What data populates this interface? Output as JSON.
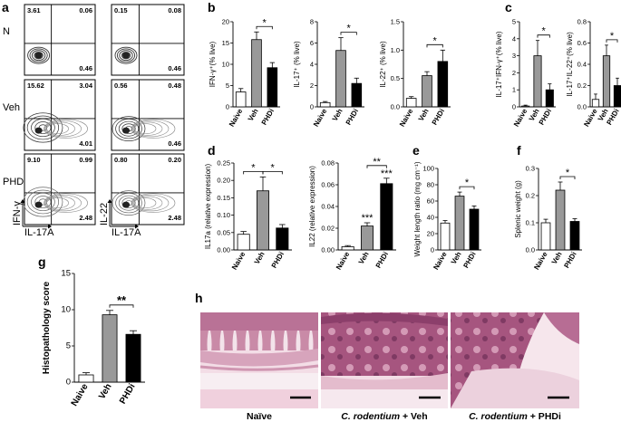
{
  "panel_labels": [
    "a",
    "b",
    "c",
    "d",
    "e",
    "f",
    "g",
    "h"
  ],
  "flow": {
    "rows": [
      "N",
      "Veh",
      "PHDi"
    ],
    "x_axis_label": "IL-17A",
    "y_axis_labels": [
      "IFN-γ",
      "IL-22"
    ],
    "quadrants": [
      [
        [
          "3.61",
          "0.06",
          "0.46"
        ],
        [
          "0.15",
          "0.08",
          "0.46"
        ]
      ],
      [
        [
          "15.62",
          "3.04",
          "4.01"
        ],
        [
          "0.56",
          "0.48",
          "0.46"
        ]
      ],
      [
        [
          "9.10",
          "0.99",
          "2.48"
        ],
        [
          "0.80",
          "0.20",
          "2.48"
        ]
      ]
    ]
  },
  "histology": {
    "captions": [
      {
        "italic": "",
        "plain": "Naïve"
      },
      {
        "italic": "C. rodentium",
        "plain": " + Veh"
      },
      {
        "italic": "C. rodentium",
        "plain": " + PHDi"
      }
    ]
  },
  "chart_data": [
    {
      "id": "b1",
      "type": "bar",
      "categories": [
        "Naive",
        "Veh",
        "PHDi"
      ],
      "values": [
        3.5,
        15.8,
        9.2
      ],
      "errors": [
        0.8,
        1.8,
        1.2
      ],
      "ylabel": "IFN-γ⁺(% live)",
      "ylim": [
        0,
        20
      ],
      "yticks": [
        0,
        5,
        10,
        15,
        20
      ],
      "sig": [
        {
          "from": 1,
          "to": 2,
          "label": "*"
        }
      ]
    },
    {
      "id": "b2",
      "type": "bar",
      "categories": [
        "Naive",
        "Veh",
        "PHDi"
      ],
      "values": [
        0.4,
        5.3,
        2.2
      ],
      "errors": [
        0.1,
        1.2,
        0.5
      ],
      "ylabel": "IL-17⁺ (% live)",
      "ylim": [
        0,
        8
      ],
      "yticks": [
        0,
        2,
        4,
        6,
        8
      ],
      "sig": [
        {
          "from": 1,
          "to": 2,
          "label": "*"
        }
      ]
    },
    {
      "id": "b3",
      "type": "bar",
      "categories": [
        "Naive",
        "Veh",
        "PHDi"
      ],
      "values": [
        0.15,
        0.55,
        0.8
      ],
      "errors": [
        0.03,
        0.07,
        0.2
      ],
      "ylabel": "IL-22⁺ (% live)",
      "ylim": [
        0,
        1.5
      ],
      "yticks": [
        0,
        0.5,
        1.0,
        1.5
      ],
      "sig": [
        {
          "from": 1,
          "to": 2,
          "label": "*"
        }
      ]
    },
    {
      "id": "c1",
      "type": "bar",
      "categories": [
        "Naive",
        "Veh",
        "PHDi"
      ],
      "values": [
        0.05,
        3.0,
        1.0
      ],
      "errors": [
        0.05,
        0.9,
        0.35
      ],
      "ylabel": "IL-17⁺IFN-γ⁺(% live)",
      "ylim": [
        0,
        5
      ],
      "yticks": [
        0,
        1,
        2,
        3,
        4,
        5
      ],
      "sig": [
        {
          "from": 1,
          "to": 2,
          "label": "*"
        }
      ]
    },
    {
      "id": "c2",
      "type": "bar",
      "categories": [
        "Naive",
        "Veh",
        "PHDi"
      ],
      "values": [
        0.07,
        0.48,
        0.2
      ],
      "errors": [
        0.05,
        0.1,
        0.07
      ],
      "ylabel": "IL-17⁺IL-22⁺(% live)",
      "ylim": [
        0,
        0.8
      ],
      "yticks": [
        0,
        0.2,
        0.4,
        0.6,
        0.8
      ],
      "sig": [
        {
          "from": 1,
          "to": 2,
          "label": "*"
        }
      ]
    },
    {
      "id": "d1",
      "type": "bar",
      "categories": [
        "Naive",
        "Veh",
        "PHDi"
      ],
      "values": [
        0.045,
        0.17,
        0.063
      ],
      "errors": [
        0.008,
        0.04,
        0.01
      ],
      "ylabel": "IL17a (relative expression)",
      "ylim": [
        0,
        0.25
      ],
      "yticks": [
        0,
        0.05,
        0.1,
        0.15,
        0.2,
        0.25
      ],
      "sig": [
        {
          "from": 0,
          "to": 1,
          "label": "*"
        },
        {
          "from": 1,
          "to": 2,
          "label": "*"
        }
      ]
    },
    {
      "id": "d2",
      "type": "bar",
      "categories": [
        "Naive",
        "Veh",
        "PHDi"
      ],
      "values": [
        0.003,
        0.022,
        0.061
      ],
      "errors": [
        0.001,
        0.003,
        0.005
      ],
      "ylabel": "IL22 (relative expression)",
      "ylim": [
        0,
        0.08
      ],
      "yticks": [
        0,
        0.02,
        0.04,
        0.06,
        0.08
      ],
      "sig": [
        {
          "from": 1,
          "to": 2,
          "label": "**"
        }
      ],
      "bar_labels": [
        "",
        "***",
        "***"
      ]
    },
    {
      "id": "e",
      "type": "bar",
      "categories": [
        "Naive",
        "Veh",
        "PHDi"
      ],
      "values": [
        33,
        66,
        50
      ],
      "errors": [
        3,
        5,
        4
      ],
      "ylabel": "Weight length ratio (mg cm⁻¹)",
      "ylim": [
        0,
        100
      ],
      "yticks": [
        0,
        20,
        40,
        60,
        80,
        100
      ],
      "sig": [
        {
          "from": 1,
          "to": 2,
          "label": "*"
        }
      ]
    },
    {
      "id": "f",
      "type": "bar",
      "categories": [
        "Naive",
        "Veh",
        "PHDi"
      ],
      "values": [
        0.1,
        0.22,
        0.105
      ],
      "errors": [
        0.013,
        0.03,
        0.01
      ],
      "ylabel": "Splenic weight (g)",
      "ylim": [
        0,
        0.3
      ],
      "yticks": [
        0,
        0.1,
        0.2,
        0.3
      ],
      "sig": [
        {
          "from": 1,
          "to": 2,
          "label": "*"
        }
      ]
    },
    {
      "id": "g",
      "type": "bar",
      "categories": [
        "Naive",
        "Veh",
        "PHDi"
      ],
      "values": [
        1.0,
        9.3,
        6.6
      ],
      "errors": [
        0.3,
        0.6,
        0.5
      ],
      "ylabel": "Histopathology score",
      "ylim": [
        0,
        15
      ],
      "yticks": [
        0,
        5,
        10,
        15
      ],
      "sig": [
        {
          "from": 1,
          "to": 2,
          "label": "**"
        }
      ]
    }
  ]
}
